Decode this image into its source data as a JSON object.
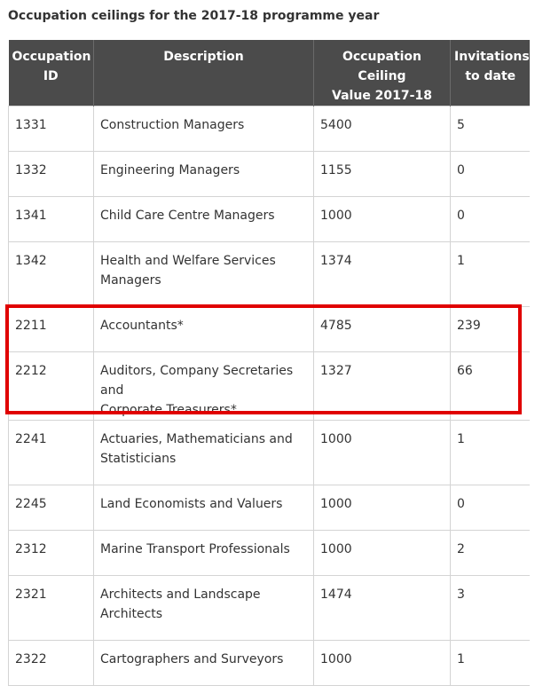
{
  "caption": "Occupation ceilings for the 2017-18 programme year",
  "headers": {
    "id": [
      "Occupation",
      "ID"
    ],
    "description": "Description",
    "ceiling": [
      "Occupation Ceiling",
      "Value 2017-18"
    ],
    "invitations": [
      "Invitations",
      "to date"
    ]
  },
  "rows": [
    {
      "id": "1331",
      "description": [
        "Construction Managers"
      ],
      "ceiling": "5400",
      "invitations": "5"
    },
    {
      "id": "1332",
      "description": [
        "Engineering Managers"
      ],
      "ceiling": "1155",
      "invitations": "0"
    },
    {
      "id": "1341",
      "description": [
        "Child Care Centre Managers"
      ],
      "ceiling": "1000",
      "invitations": "0"
    },
    {
      "id": "1342",
      "description": [
        "Health and Welfare Services",
        "Managers"
      ],
      "ceiling": "1374",
      "invitations": "1"
    },
    {
      "id": "2211",
      "description": [
        "Accountants*"
      ],
      "ceiling": "4785",
      "invitations": "239"
    },
    {
      "id": "2212",
      "description": [
        "Auditors, Company Secretaries and",
        "Corporate Treasurers*"
      ],
      "ceiling": "1327",
      "invitations": "66"
    },
    {
      "id": "2241",
      "description": [
        "Actuaries, Mathematicians and",
        "Statisticians"
      ],
      "ceiling": "1000",
      "invitations": "1"
    },
    {
      "id": "2245",
      "description": [
        "Land Economists and Valuers"
      ],
      "ceiling": "1000",
      "invitations": "0"
    },
    {
      "id": "2312",
      "description": [
        "Marine Transport Professionals"
      ],
      "ceiling": "1000",
      "invitations": "2"
    },
    {
      "id": "2321",
      "description": [
        "Architects and Landscape",
        "Architects"
      ],
      "ceiling": "1474",
      "invitations": "3"
    },
    {
      "id": "2322",
      "description": [
        "Cartographers and Surveyors"
      ],
      "ceiling": "1000",
      "invitations": "1"
    }
  ],
  "colors": {
    "header_bg": "#4b4b4b",
    "header_text": "#ffffff",
    "grid": "#d4d4d4",
    "highlight": "#e00000"
  }
}
